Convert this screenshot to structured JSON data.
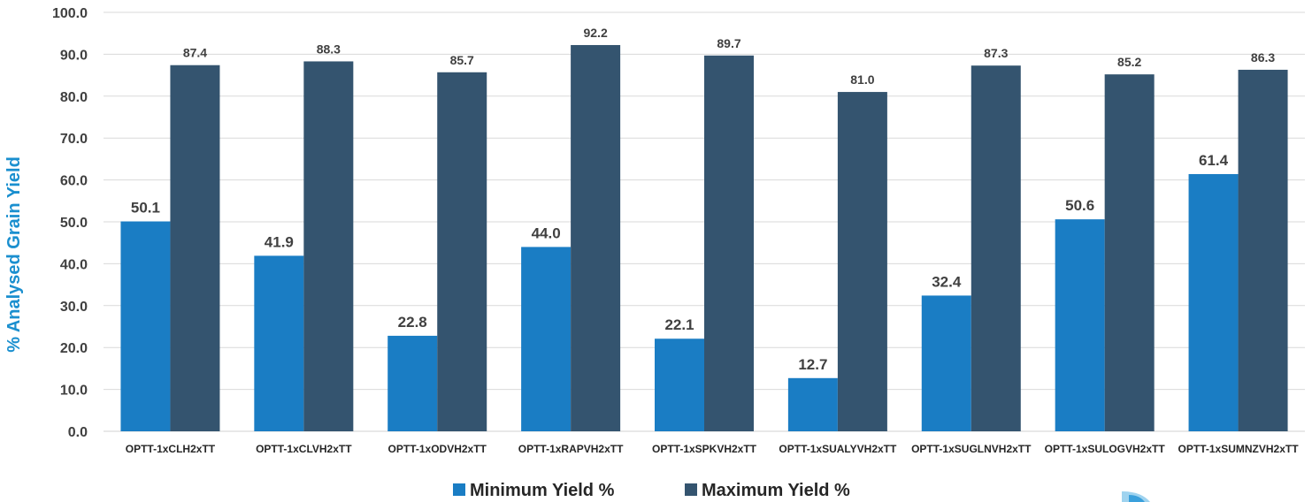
{
  "chart_data": {
    "type": "bar",
    "ylabel": "% Analysed Grain Yield",
    "ylim": [
      0,
      100
    ],
    "ytick_step": 10,
    "yticks": [
      "0.0",
      "10.0",
      "20.0",
      "30.0",
      "40.0",
      "50.0",
      "60.0",
      "70.0",
      "80.0",
      "90.0",
      "100.0"
    ],
    "grid": true,
    "legend_position": "bottom",
    "categories": [
      "OPTT-1xCLH2xTT",
      "OPTT-1xCLVH2xTT",
      "OPTT-1xODVH2xTT",
      "OPTT-1xRAPVH2xTT",
      "OPTT-1xSPKVH2xTT",
      "OPTT-1xSUALYVH2xTT",
      "OPTT-1xSUGLNVH2xTT",
      "OPTT-1xSULOGVH2xTT",
      "OPTT-1xSUMNZVH2xTT"
    ],
    "series": [
      {
        "name": "Minimum Yield %",
        "color": "#1a7dc4",
        "values": [
          50.1,
          41.9,
          22.8,
          44.0,
          22.1,
          12.7,
          32.4,
          50.6,
          61.4
        ],
        "labels": [
          "50.1",
          "41.9",
          "22.8",
          "44.0",
          "22.1",
          "12.7",
          "32.4",
          "50.6",
          "61.4"
        ]
      },
      {
        "name": "Maximum Yield %",
        "color": "#34546f",
        "values": [
          87.4,
          88.3,
          85.7,
          92.2,
          89.7,
          81.0,
          87.3,
          85.2,
          86.3
        ],
        "labels": [
          "87.4",
          "88.3",
          "85.7",
          "92.2",
          "89.7",
          "81.0",
          "87.3",
          "85.2",
          "86.3"
        ]
      }
    ],
    "colors": {
      "axis_label": "#1a8fcf",
      "grid": "#d9d9d9"
    }
  }
}
